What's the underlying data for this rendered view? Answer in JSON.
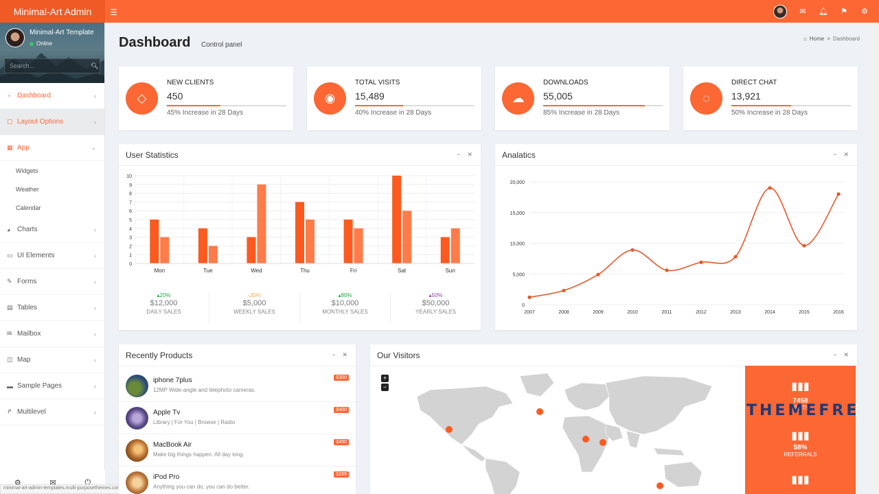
{
  "brand": {
    "title": "Minimal-Art Admin"
  },
  "topbar": {
    "icons": [
      "user-avatar",
      "envelope-icon",
      "bell-icon",
      "flag-icon",
      "gear-icon"
    ]
  },
  "sidebar": {
    "user_name": "Minimal-Art Template",
    "status": "Online",
    "search_placeholder": "Search...",
    "menu": [
      {
        "label": "Dashboard",
        "icon": "dashboard-icon",
        "state": "active"
      },
      {
        "label": "Layout Options",
        "icon": "layout-icon",
        "state": "hover"
      },
      {
        "label": "App",
        "icon": "grid-icon",
        "state": "open"
      },
      {
        "label": "Charts",
        "icon": "pie-chart-icon"
      },
      {
        "label": "UI Elements",
        "icon": "laptop-icon"
      },
      {
        "label": "Forms",
        "icon": "edit-icon"
      },
      {
        "label": "Tables",
        "icon": "table-icon"
      },
      {
        "label": "Mailbox",
        "icon": "envelope-icon"
      },
      {
        "label": "Map",
        "icon": "map-icon"
      },
      {
        "label": "Sample Pages",
        "icon": "folder-icon"
      },
      {
        "label": "Multilevel",
        "icon": "share-icon"
      }
    ],
    "submenu": [
      "Widgets",
      "Weather",
      "Calendar"
    ],
    "footer_icons": [
      "gear-icon",
      "envelope-icon",
      "power-icon"
    ]
  },
  "status_url": "minimal-art-admin-templates.multi-purposethemes.com",
  "header": {
    "title": "Dashboard",
    "subtitle": "Control panel",
    "breadcrumb_home": "Home",
    "breadcrumb_current": "Dashboard"
  },
  "info_boxes": [
    {
      "title": "NEW CLIENTS",
      "value": "450",
      "desc": "45% Increase in 28 Days",
      "progress": 45,
      "icon": "tag-icon"
    },
    {
      "title": "TOTAL VISITS",
      "value": "15,489",
      "desc": "40% Increase in 28 Days",
      "progress": 40,
      "icon": "eye-icon"
    },
    {
      "title": "DOWNLOADS",
      "value": "55,005",
      "desc": "85% Increase in 28 Days",
      "progress": 85,
      "icon": "cloud-download-icon"
    },
    {
      "title": "DIRECT CHAT",
      "value": "13,921",
      "desc": "50% Increase in 28 Days",
      "progress": 50,
      "icon": "chat-icon"
    }
  ],
  "user_statistics": {
    "title": "User Statistics",
    "stats": [
      {
        "pct": "20%",
        "dir": "up",
        "value": "$12,000",
        "label": "DAILY SALES",
        "color": "#28a745"
      },
      {
        "pct": "30%",
        "dir": "left",
        "value": "$5,000",
        "label": "WEEKLY SALES",
        "color": "#f0ad4e"
      },
      {
        "pct": "80%",
        "dir": "up",
        "value": "$10,000",
        "label": "MONTHLY SALES",
        "color": "#28a745"
      },
      {
        "pct": "50%",
        "dir": "up",
        "value": "$50,000",
        "label": "YEARLY SALES",
        "color": "#8e44ad"
      }
    ]
  },
  "analytics": {
    "title": "Analatics"
  },
  "products": {
    "title": "Recently Products",
    "items": [
      {
        "name": "iphone 7plus",
        "desc": "12MP Wide-angle and telephoto cameras.",
        "price": "$300"
      },
      {
        "name": "Apple Tv",
        "desc": "Library | For You | Browse | Radio",
        "price": "$400"
      },
      {
        "name": "MacBook Air",
        "desc": "Make big things happen. All day long.",
        "price": "$450"
      },
      {
        "name": "iPod Pro",
        "desc": "Anything you can do, you can do better.",
        "price": "$289"
      }
    ]
  },
  "visitors": {
    "title": "Our Visitors",
    "zoom_in": "+",
    "zoom_out": "−",
    "cards": [
      {
        "value": "7458",
        "label": "VISITS"
      },
      {
        "value": "58%",
        "label": "REFERRALS"
      }
    ],
    "watermark": "THEMEFRE"
  },
  "chart_data": [
    {
      "type": "bar",
      "categories": [
        "Mon",
        "Tue",
        "Wed",
        "Thu",
        "Fri",
        "Sat",
        "Sun"
      ],
      "series": [
        {
          "values": [
            5,
            4,
            3,
            7,
            5,
            10,
            3
          ]
        },
        {
          "values": [
            3,
            2,
            9,
            5,
            4,
            6,
            4
          ]
        }
      ],
      "ylim": [
        0,
        10
      ],
      "yticks": [
        0,
        1,
        2,
        3,
        4,
        5,
        6,
        7,
        8,
        9,
        10
      ],
      "colors": [
        "#fc5a1f",
        "#fd7c4a"
      ]
    },
    {
      "type": "line",
      "x": [
        "2007",
        "2008",
        "2009",
        "2010",
        "2011",
        "2012",
        "2013",
        "2014",
        "2015",
        "2016"
      ],
      "values": [
        1200,
        2300,
        4900,
        8900,
        5600,
        6900,
        7800,
        19000,
        9600,
        18000
      ],
      "ylim": [
        0,
        20000
      ],
      "yticks": [
        "0",
        "5,000",
        "10,000",
        "15,000",
        "20,000"
      ],
      "color": "#e8572a"
    }
  ],
  "map_markers": [
    "usa",
    "europe",
    "middle-east",
    "india",
    "australia"
  ]
}
